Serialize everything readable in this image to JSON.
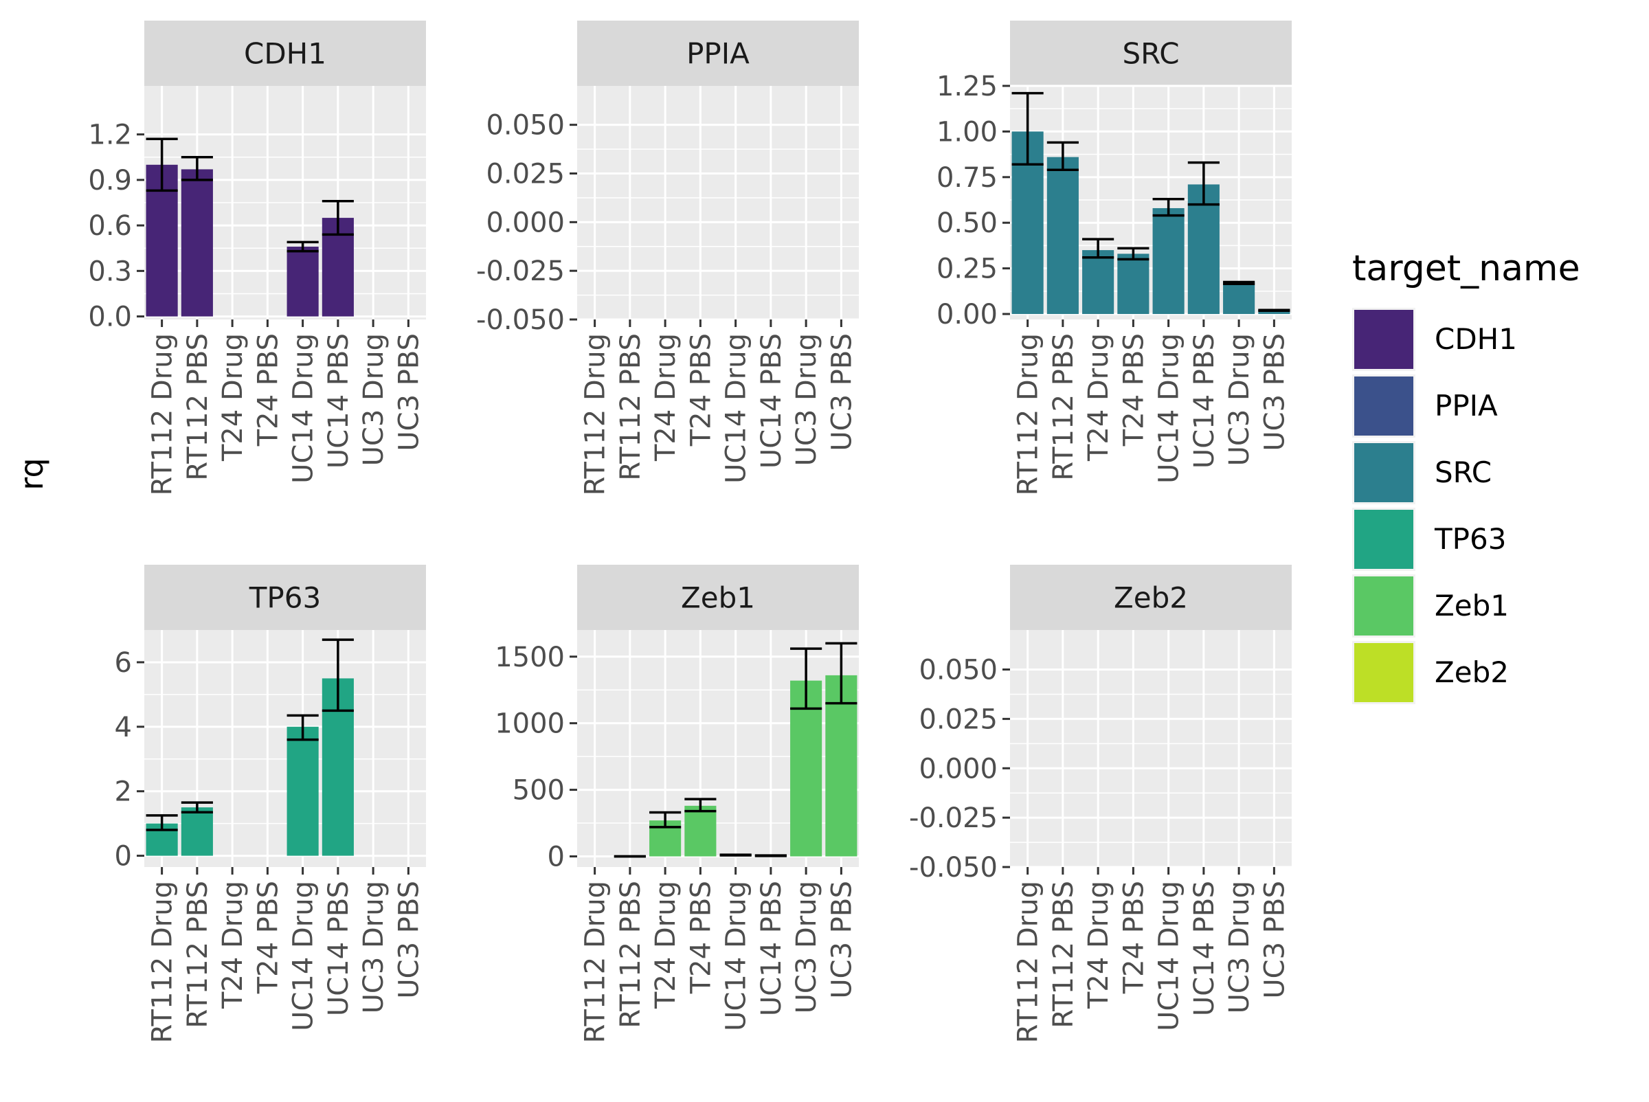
{
  "chart_data": {
    "type": "bar",
    "facet_by": "target_name",
    "ylabel": "rq",
    "xlabel": "",
    "scales": "free_y",
    "grid": true,
    "legend": {
      "title": "target_name",
      "placement": "right",
      "entries": [
        {
          "name": "CDH1",
          "color": "#472576"
        },
        {
          "name": "PPIA",
          "color": "#3B518B"
        },
        {
          "name": "SRC",
          "color": "#2C7F8E"
        },
        {
          "name": "TP63",
          "color": "#21A584"
        },
        {
          "name": "Zeb1",
          "color": "#5AC864"
        },
        {
          "name": "Zeb2",
          "color": "#BDDF26"
        }
      ]
    },
    "categories": [
      "RT112 Drug",
      "RT112 PBS",
      "T24 Drug",
      "T24 PBS",
      "UC14 Drug",
      "UC14 PBS",
      "UC3 Drug",
      "UC3 PBS"
    ],
    "panels": [
      {
        "title": "CDH1",
        "color": "#472576",
        "ylim": [
          -0.02,
          1.52
        ],
        "ticks": [
          0.0,
          0.3,
          0.6,
          0.9,
          1.2
        ],
        "tick_labels": [
          "0.0",
          "0.3",
          "0.6",
          "0.9",
          "1.2"
        ],
        "values": [
          1.0,
          0.97,
          null,
          null,
          0.46,
          0.65,
          null,
          null
        ],
        "err_low": [
          0.83,
          0.9,
          null,
          null,
          0.43,
          0.54,
          null,
          null
        ],
        "err_high": [
          1.17,
          1.05,
          null,
          null,
          0.49,
          0.76,
          null,
          null
        ]
      },
      {
        "title": "PPIA",
        "color": "#3B518B",
        "ylim": [
          -0.05,
          0.07
        ],
        "ticks": [
          -0.05,
          -0.025,
          0.0,
          0.025,
          0.05
        ],
        "tick_labels": [
          "-0.050",
          "-0.025",
          "0.000",
          "0.025",
          "0.050"
        ],
        "values": [
          null,
          null,
          null,
          null,
          null,
          null,
          null,
          null
        ],
        "err_low": [
          null,
          null,
          null,
          null,
          null,
          null,
          null,
          null
        ],
        "err_high": [
          null,
          null,
          null,
          null,
          null,
          null,
          null,
          null
        ]
      },
      {
        "title": "SRC",
        "color": "#2C7F8E",
        "ylim": [
          -0.03,
          1.25
        ],
        "ticks": [
          0.0,
          0.25,
          0.5,
          0.75,
          1.0,
          1.25
        ],
        "tick_labels": [
          "0.00",
          "0.25",
          "0.50",
          "0.75",
          "1.00",
          "1.25"
        ],
        "values": [
          1.0,
          0.86,
          0.35,
          0.33,
          0.58,
          0.71,
          0.17,
          0.02
        ],
        "err_low": [
          0.82,
          0.79,
          0.31,
          0.3,
          0.54,
          0.6,
          0.165,
          0.018
        ],
        "err_high": [
          1.21,
          0.94,
          0.41,
          0.36,
          0.63,
          0.83,
          0.175,
          0.022
        ]
      },
      {
        "title": "TP63",
        "color": "#21A584",
        "ylim": [
          -0.35,
          7.0
        ],
        "ticks": [
          0,
          2,
          4,
          6
        ],
        "tick_labels": [
          "0",
          "2",
          "4",
          "6"
        ],
        "values": [
          1.0,
          1.5,
          null,
          null,
          4.0,
          5.5,
          null,
          null
        ],
        "err_low": [
          0.8,
          1.35,
          null,
          null,
          3.6,
          4.5,
          null,
          null
        ],
        "err_high": [
          1.25,
          1.65,
          null,
          null,
          4.35,
          6.7,
          null,
          null
        ]
      },
      {
        "title": "Zeb1",
        "color": "#5AC864",
        "ylim": [
          -80,
          1700
        ],
        "ticks": [
          0,
          500,
          1000,
          1500
        ],
        "tick_labels": [
          "0",
          "500",
          "1000",
          "1500"
        ],
        "values": [
          null,
          0,
          270,
          380,
          10,
          5,
          1320,
          1360
        ],
        "err_low": [
          null,
          0,
          220,
          340,
          8,
          3,
          1110,
          1150
        ],
        "err_high": [
          null,
          0,
          330,
          430,
          12,
          7,
          1560,
          1600
        ]
      },
      {
        "title": "Zeb2",
        "color": "#BDDF26",
        "ylim": [
          -0.05,
          0.07
        ],
        "ticks": [
          -0.05,
          -0.025,
          0.0,
          0.025,
          0.05
        ],
        "tick_labels": [
          "-0.050",
          "-0.025",
          "0.000",
          "0.025",
          "0.050"
        ],
        "values": [
          null,
          null,
          null,
          null,
          null,
          null,
          null,
          null
        ],
        "err_low": [
          null,
          null,
          null,
          null,
          null,
          null,
          null,
          null
        ],
        "err_high": [
          null,
          null,
          null,
          null,
          null,
          null,
          null,
          null
        ]
      }
    ]
  }
}
